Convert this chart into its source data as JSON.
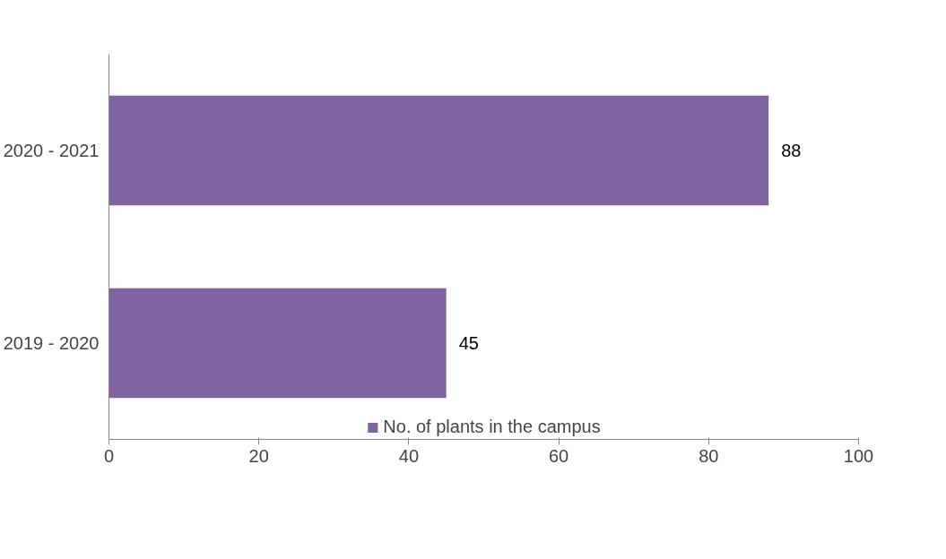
{
  "chart_data": {
    "type": "bar",
    "orientation": "horizontal",
    "categories": [
      "2020 - 2021",
      "2019 - 2020"
    ],
    "series": [
      {
        "name": "No. of plants in the campus",
        "color": "#8064a2",
        "values": [
          88,
          45
        ]
      }
    ],
    "xlim": [
      0,
      100
    ],
    "xticks": [
      0,
      20,
      40,
      60,
      80,
      100
    ],
    "data_labels": true,
    "grid": false,
    "legend": "bottom"
  }
}
